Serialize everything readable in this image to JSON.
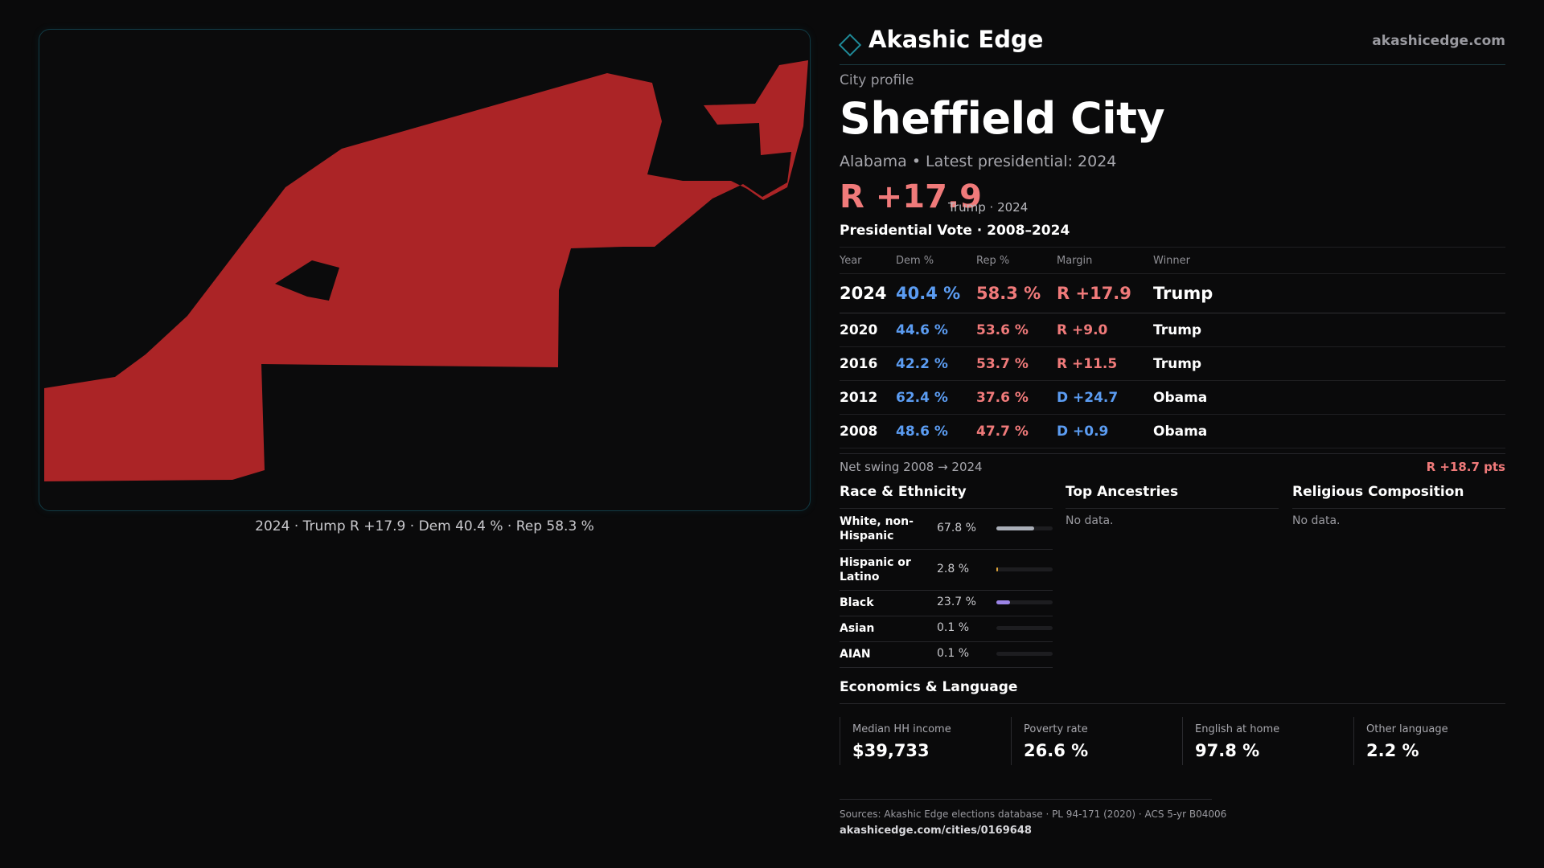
{
  "brand": {
    "name": "Akashic Edge",
    "url": "akashicedge.com",
    "accent": "#1f8a99"
  },
  "map": {
    "fill_color": "#ab2426",
    "caption": "2024 · Trump R +17.9 · Dem 40.4 % · Rep 58.3 %"
  },
  "profile": {
    "kicker": "City profile",
    "name": "Sheffield City",
    "subline": "Alabama • Latest presidential: 2024",
    "margin": "R +17.9",
    "margin_note": "Trump · 2024"
  },
  "vote_table": {
    "title": "Presidential Vote · 2008–2024",
    "headers": [
      "Year",
      "Dem %",
      "Rep %",
      "Margin",
      "Winner"
    ],
    "rows": [
      {
        "year": "2024",
        "dem": "40.4 %",
        "rep": "58.3 %",
        "margin": "R +17.9",
        "winner": "Trump"
      },
      {
        "year": "2020",
        "dem": "44.6 %",
        "rep": "53.6 %",
        "margin": "R +9.0",
        "winner": "Trump"
      },
      {
        "year": "2016",
        "dem": "42.2 %",
        "rep": "53.7 %",
        "margin": "R +11.5",
        "winner": "Trump"
      },
      {
        "year": "2012",
        "dem": "62.4 %",
        "rep": "37.6 %",
        "margin": "D +24.7",
        "winner": "Obama"
      },
      {
        "year": "2008",
        "dem": "48.6 %",
        "rep": "47.7 %",
        "margin": "D +0.9",
        "winner": "Obama"
      }
    ],
    "colors": {
      "dem": "#5b9cf2",
      "rep": "#f07a7a"
    }
  },
  "swing": {
    "label": "Net swing 2008 → 2024",
    "value": "R +18.7 pts"
  },
  "race": {
    "title": "Race & Ethnicity",
    "rows": [
      {
        "label": "White, non-Hispanic",
        "pct": "67.8 %",
        "share": 0.678,
        "color": "#a9aeb8"
      },
      {
        "label": "Hispanic or Latino",
        "pct": "2.8 %",
        "share": 0.028,
        "color": "#e0a63a"
      },
      {
        "label": "Black",
        "pct": "23.7 %",
        "share": 0.237,
        "color": "#9b84e6"
      },
      {
        "label": "Asian",
        "pct": "0.1 %",
        "share": 0.001,
        "color": "#5fc1c9"
      },
      {
        "label": "AIAN",
        "pct": "0.1 %",
        "share": 0.001,
        "color": "#7fc77f"
      }
    ]
  },
  "ancestries": {
    "title": "Top Ancestries",
    "empty": "No data."
  },
  "religion": {
    "title": "Religious Composition",
    "empty": "No data."
  },
  "economics": {
    "title": "Economics & Language",
    "cards": [
      {
        "label": "Median HH income",
        "value": "$39,733"
      },
      {
        "label": "Poverty rate",
        "value": "26.6 %"
      },
      {
        "label": "English at home",
        "value": "97.8 %"
      },
      {
        "label": "Other language",
        "value": "2.2 %"
      }
    ]
  },
  "footer": {
    "sources": "Sources: Akashic Edge elections database · PL 94-171 (2020) · ACS 5-yr B04006",
    "page_url": "akashicedge.com/cities/0169648"
  }
}
